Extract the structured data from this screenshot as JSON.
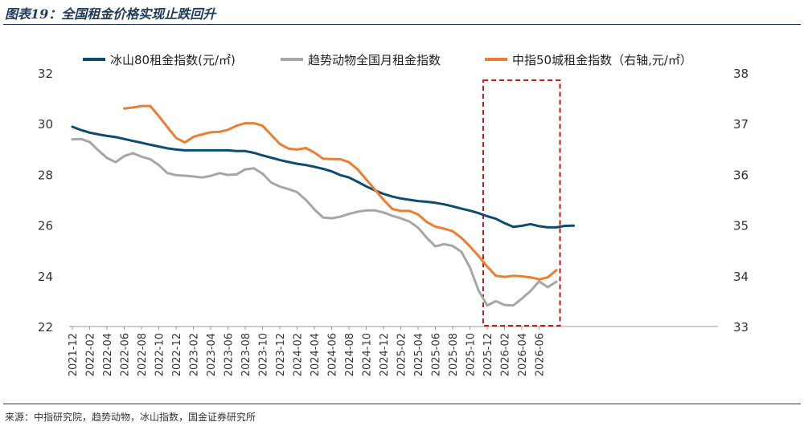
{
  "header": {
    "title": "图表19：全国租金价格实现止跌回升"
  },
  "footer": {
    "source": "来源：中指研究院，趋势动物，冰山指数，国金证券研究所"
  },
  "chart_data": {
    "type": "line",
    "y_left_ticks": [
      "32",
      "30",
      "28",
      "26",
      "24",
      "22"
    ],
    "y_right_ticks": [
      "38",
      "37",
      "36",
      "35",
      "34",
      "33"
    ],
    "ylim_left": [
      22,
      32
    ],
    "ylim_right": [
      33,
      38
    ],
    "x_tick_labels": [
      "2021-12",
      "2022-02",
      "2022-04",
      "2022-06",
      "2022-08",
      "2022-10",
      "2022-12",
      "2023-02",
      "2023-04",
      "2023-06",
      "2023-08",
      "2023-10",
      "2023-12",
      "2024-02",
      "2024-04",
      "2024-06",
      "2024-08",
      "2024-10",
      "2024-12",
      "2025-02",
      "2025-04",
      "2025-06",
      "2025-08",
      "2025-10",
      "2025-12",
      "2026-02",
      "2026-04",
      "2026-06"
    ],
    "grid": false,
    "legend_position": "top",
    "highlight_box": {
      "from": "2025-12",
      "to": "2026-06"
    },
    "series": [
      {
        "name": "冰山80租金指数(元/㎡)",
        "axis": "left",
        "color": "#0e4c6e",
        "start": "2021-12",
        "values": [
          29.88,
          29.75,
          29.65,
          29.58,
          29.52,
          29.47,
          29.4,
          29.32,
          29.25,
          29.17,
          29.1,
          29.03,
          28.98,
          28.95,
          28.95,
          28.95,
          28.95,
          28.95,
          28.95,
          28.92,
          28.92,
          28.85,
          28.75,
          28.66,
          28.57,
          28.49,
          28.42,
          28.37,
          28.3,
          28.22,
          28.12,
          27.97,
          27.88,
          27.71,
          27.53,
          27.37,
          27.23,
          27.13,
          27.05,
          27.0,
          26.95,
          26.92,
          26.88,
          26.82,
          26.74,
          26.65,
          26.57,
          26.47,
          26.35,
          26.25,
          26.08,
          25.93,
          25.97,
          26.04,
          25.96,
          25.91,
          25.91,
          25.97,
          25.98
        ]
      },
      {
        "name": "趋势动物全国月租金指数",
        "axis": "left",
        "color": "#a6a6a6",
        "start": "2021-12",
        "values": [
          29.38,
          29.4,
          29.28,
          28.95,
          28.65,
          28.48,
          28.72,
          28.84,
          28.7,
          28.6,
          28.37,
          28.05,
          27.97,
          27.95,
          27.92,
          27.88,
          27.94,
          28.05,
          27.98,
          28.0,
          28.2,
          28.24,
          28.03,
          27.68,
          27.52,
          27.42,
          27.3,
          27.0,
          26.62,
          26.3,
          26.27,
          26.33,
          26.44,
          26.53,
          26.58,
          26.58,
          26.5,
          26.37,
          26.27,
          26.14,
          25.9,
          25.5,
          25.16,
          25.25,
          25.18,
          24.95,
          24.33,
          23.42,
          22.83,
          23.0,
          22.85,
          22.83,
          23.1,
          23.4,
          23.78,
          23.55,
          23.77
        ]
      },
      {
        "name": "中指50城租金指数（右轴,元/㎡）",
        "axis": "right",
        "color": "#ed7d31",
        "start": "2022-06",
        "values": [
          37.3,
          37.32,
          37.35,
          37.35,
          37.15,
          36.93,
          36.72,
          36.63,
          36.74,
          36.79,
          36.83,
          36.84,
          36.88,
          36.96,
          37.01,
          37.01,
          36.96,
          36.78,
          36.6,
          36.51,
          36.49,
          36.52,
          36.43,
          36.31,
          36.3,
          36.3,
          36.24,
          36.1,
          35.9,
          35.7,
          35.5,
          35.32,
          35.28,
          35.28,
          35.21,
          35.06,
          34.97,
          34.93,
          34.88,
          34.75,
          34.58,
          34.39,
          34.18,
          34.0,
          33.98,
          34.0,
          33.99,
          33.97,
          33.93,
          33.97,
          34.11
        ]
      }
    ]
  }
}
